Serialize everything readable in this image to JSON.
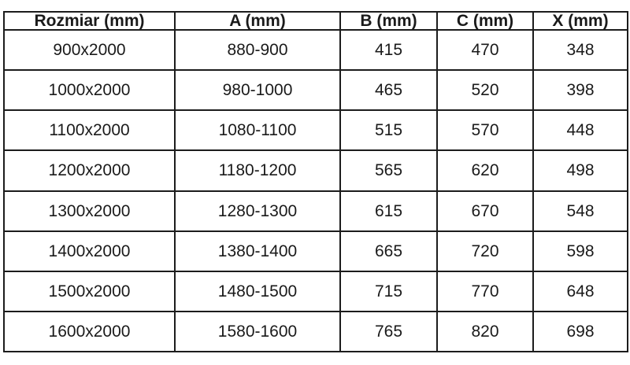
{
  "colors": {
    "border": "#1c1c1c",
    "text": "#1a1a1a",
    "background": "#ffffff"
  },
  "chart_data": {
    "type": "table",
    "title": "",
    "columns": [
      "Rozmiar (mm)",
      "A (mm)",
      "B (mm)",
      "C (mm)",
      "X (mm)"
    ],
    "rows": [
      [
        "900x2000",
        "880-900",
        "415",
        "470",
        "348"
      ],
      [
        "1000x2000",
        "980-1000",
        "465",
        "520",
        "398"
      ],
      [
        "1100x2000",
        "1080-1100",
        "515",
        "570",
        "448"
      ],
      [
        "1200x2000",
        "1180-1200",
        "565",
        "620",
        "498"
      ],
      [
        "1300x2000",
        "1280-1300",
        "615",
        "670",
        "548"
      ],
      [
        "1400x2000",
        "1380-1400",
        "665",
        "720",
        "598"
      ],
      [
        "1500x2000",
        "1480-1500",
        "715",
        "770",
        "648"
      ],
      [
        "1600x2000",
        "1580-1600",
        "765",
        "820",
        "698"
      ]
    ]
  }
}
